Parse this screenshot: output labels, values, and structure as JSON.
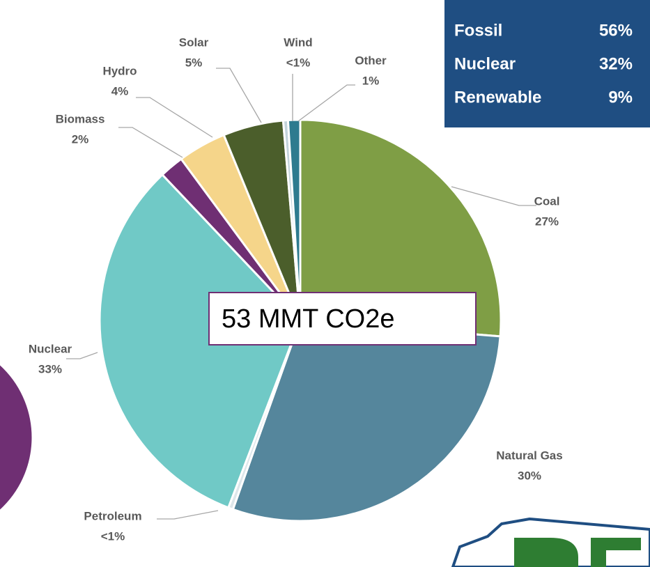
{
  "chart_data": {
    "type": "pie",
    "categories": [
      "Coal",
      "Natural Gas",
      "Petroleum",
      "Nuclear",
      "Biomass",
      "Hydro",
      "Solar",
      "Wind",
      "Other"
    ],
    "values": [
      27,
      30,
      0.4,
      33,
      2,
      4,
      5,
      0.4,
      1
    ],
    "value_labels": [
      "27%",
      "30%",
      "<1%",
      "33%",
      "2%",
      "4%",
      "5%",
      "<1%",
      "1%"
    ],
    "colors": [
      "#7f9e45",
      "#55869c",
      "#dde6ea",
      "#70c9c6",
      "#6f2f73",
      "#f5d58a",
      "#4b5e2b",
      "#c3d3db",
      "#2e7b8f"
    ],
    "annotation": "53 MMT CO2e",
    "summary": [
      {
        "name": "Fossil",
        "label": "56%"
      },
      {
        "name": "Nuclear",
        "label": "32%"
      },
      {
        "name": "Renewable",
        "label": "9%"
      }
    ]
  }
}
